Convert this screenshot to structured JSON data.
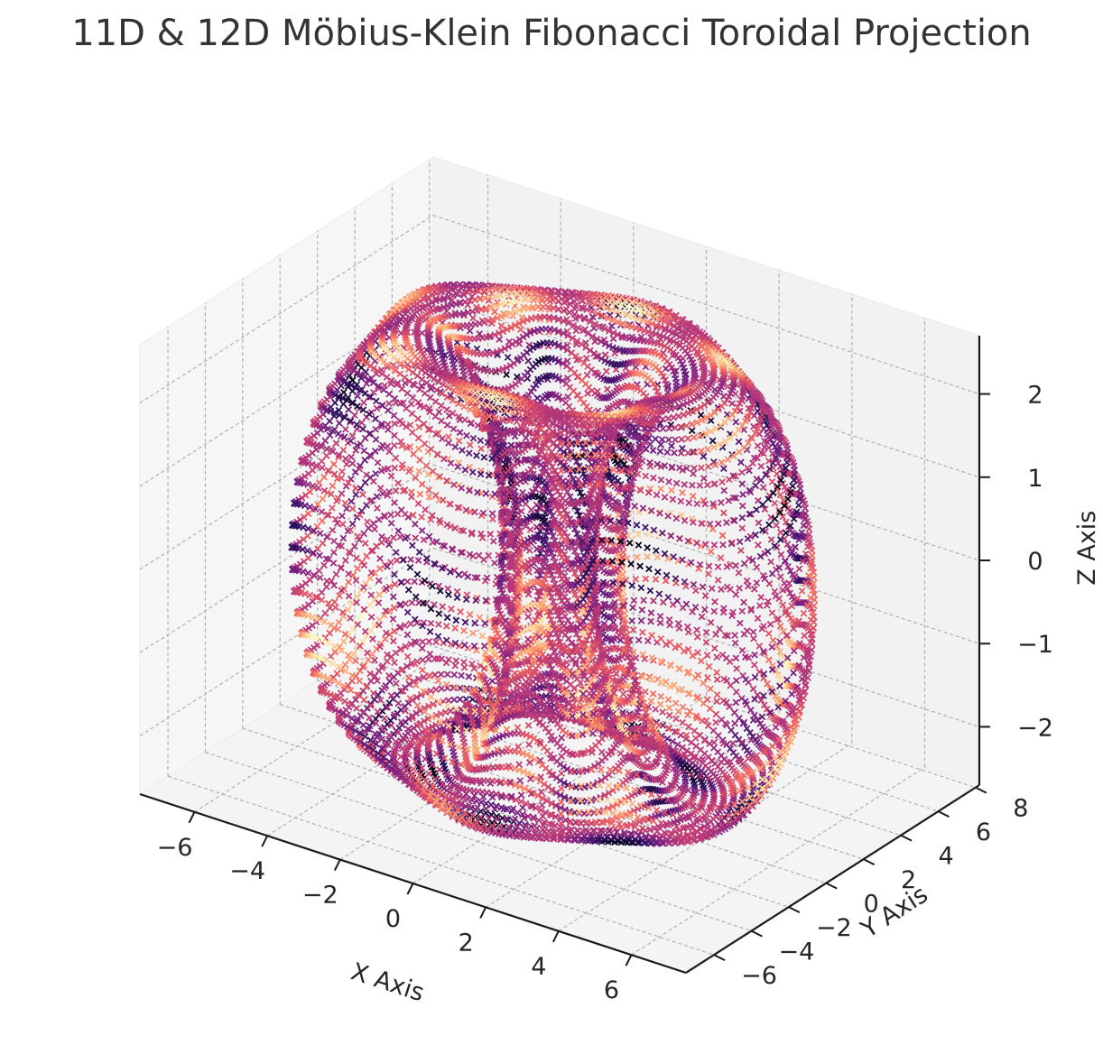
{
  "chart_data": {
    "type": "scatter",
    "projection": "3d",
    "title": "11D & 12D Möbius-Klein Fibonacci Toroidal Projection",
    "xlabel": "X Axis",
    "ylabel": "Y Axis",
    "zlabel": "Z Axis",
    "xlim": [
      -7.5,
      7.5
    ],
    "ylim": [
      -7.5,
      8.2
    ],
    "zlim": [
      -2.7,
      2.7
    ],
    "x_ticks": [
      -6,
      -4,
      -2,
      0,
      2,
      4,
      6
    ],
    "x_tick_labels": [
      "−6",
      "−4",
      "−2",
      "0",
      "2",
      "4",
      "6"
    ],
    "y_ticks": [
      -6,
      -4,
      -2,
      0,
      2,
      4,
      6,
      8
    ],
    "y_tick_labels": [
      "−6",
      "−4",
      "−2",
      "0",
      "2",
      "4",
      "6",
      "8"
    ],
    "z_ticks": [
      -2,
      -1,
      0,
      1,
      2
    ],
    "z_tick_labels": [
      "−2",
      "−1",
      "0",
      "1",
      "2"
    ],
    "grid": true,
    "marker": "x",
    "colormap": "magma",
    "colormap_stops": [
      "#000004",
      "#2c115f",
      "#721f81",
      "#b73779",
      "#f1605d",
      "#feb078",
      "#fcfdbf"
    ],
    "pane_color": "#f2f2f2",
    "grid_color": "#b0b0b0",
    "axis_line_color": "#1a1a1a",
    "surface": {
      "description_of_shape": "toroidal shell",
      "radial_extent": 6.5,
      "z_extent": 2.6
    }
  }
}
